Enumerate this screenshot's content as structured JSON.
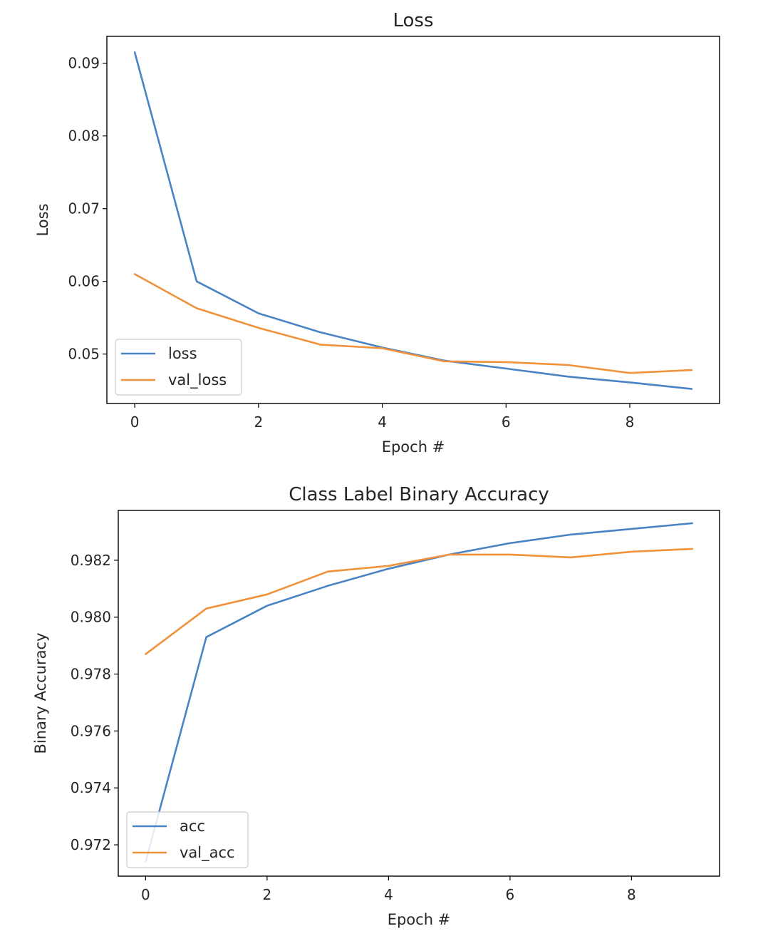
{
  "chart_data": [
    {
      "type": "line",
      "title": "Loss",
      "xlabel": "Epoch #",
      "ylabel": "Loss",
      "x": [
        0,
        1,
        2,
        3,
        4,
        5,
        6,
        7,
        8,
        9
      ],
      "xlim": [
        -0.45,
        9.45
      ],
      "ylim": [
        0.0432,
        0.0937
      ],
      "xticks": [
        0,
        2,
        4,
        6,
        8
      ],
      "yticks": [
        0.05,
        0.06,
        0.07,
        0.08,
        0.09
      ],
      "ytick_labels": [
        "0.05",
        "0.06",
        "0.07",
        "0.08",
        "0.09"
      ],
      "grid": false,
      "legend": "lower left",
      "series": [
        {
          "name": "loss",
          "color": "#4a83c4",
          "values": [
            0.0915,
            0.06,
            0.0556,
            0.053,
            0.0509,
            0.0491,
            0.048,
            0.0469,
            0.0461,
            0.0452
          ]
        },
        {
          "name": "val_loss",
          "color": "#f0913c",
          "values": [
            0.061,
            0.0563,
            0.0536,
            0.0513,
            0.0508,
            0.049,
            0.0489,
            0.0485,
            0.0474,
            0.0478
          ]
        }
      ]
    },
    {
      "type": "line",
      "title": "Class Label Binary Accuracy",
      "xlabel": "Epoch #",
      "ylabel": "Binary Accuracy",
      "x": [
        0,
        1,
        2,
        3,
        4,
        5,
        6,
        7,
        8,
        9
      ],
      "xlim": [
        -0.45,
        9.45
      ],
      "ylim": [
        0.9709,
        0.98375
      ],
      "xticks": [
        0,
        2,
        4,
        6,
        8
      ],
      "yticks": [
        0.972,
        0.974,
        0.976,
        0.978,
        0.98,
        0.982
      ],
      "ytick_labels": [
        "0.972",
        "0.974",
        "0.976",
        "0.978",
        "0.980",
        "0.982"
      ],
      "grid": false,
      "legend": "lower left",
      "series": [
        {
          "name": "acc",
          "color": "#4a83c4",
          "values": [
            0.9714,
            0.9793,
            0.9804,
            0.9811,
            0.9817,
            0.9822,
            0.9826,
            0.9829,
            0.9831,
            0.9833
          ]
        },
        {
          "name": "val_acc",
          "color": "#f0913c",
          "values": [
            0.9787,
            0.9803,
            0.9808,
            0.9816,
            0.9818,
            0.9822,
            0.9822,
            0.9821,
            0.9823,
            0.9824
          ]
        }
      ]
    }
  ]
}
